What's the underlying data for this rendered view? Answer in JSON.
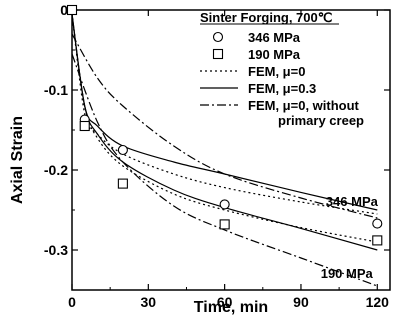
{
  "chart_data": {
    "type": "line",
    "xlabel": "Time, min",
    "ylabel": "Axial Strain",
    "xlim": [
      0,
      125
    ],
    "ylim": [
      -0.35,
      0
    ],
    "xticks": [
      0,
      30,
      60,
      90,
      120
    ],
    "yticks": [
      0,
      -0.1,
      -0.2,
      -0.3
    ],
    "ytick_labels": [
      "0",
      "-0.1",
      "-0.2",
      "-0.3"
    ],
    "grid": false,
    "legend_placement": "top-right",
    "legend_title": "Sinter Forging, 700℃",
    "annotations": [
      {
        "text": "346 MPa",
        "x": 110,
        "y": -0.245
      },
      {
        "text": "190 MPa",
        "x": 108,
        "y": -0.335
      }
    ],
    "series": [
      {
        "name": "346 MPa",
        "kind": "marker",
        "marker": "circle",
        "points": [
          [
            0,
            0
          ],
          [
            5,
            -0.137
          ],
          [
            20,
            -0.175
          ],
          [
            60,
            -0.243
          ],
          [
            120,
            -0.267
          ]
        ]
      },
      {
        "name": "190 MPa",
        "kind": "marker",
        "marker": "square",
        "points": [
          [
            0,
            0
          ],
          [
            5,
            -0.145
          ],
          [
            20,
            -0.217
          ],
          [
            60,
            -0.268
          ],
          [
            120,
            -0.288
          ]
        ]
      },
      {
        "name": "FEM, μ=0",
        "kind": "line",
        "style": "dotted",
        "group": "346 MPa",
        "points": [
          [
            0,
            -0.005
          ],
          [
            5,
            -0.13
          ],
          [
            10,
            -0.155
          ],
          [
            20,
            -0.18
          ],
          [
            40,
            -0.205
          ],
          [
            60,
            -0.222
          ],
          [
            90,
            -0.24
          ],
          [
            120,
            -0.255
          ]
        ]
      },
      {
        "name": "FEM, μ=0",
        "kind": "line",
        "style": "dotted",
        "group": "190 MPa",
        "points": [
          [
            0,
            -0.005
          ],
          [
            5,
            -0.12
          ],
          [
            10,
            -0.16
          ],
          [
            20,
            -0.195
          ],
          [
            40,
            -0.23
          ],
          [
            60,
            -0.25
          ],
          [
            90,
            -0.272
          ],
          [
            120,
            -0.29
          ]
        ]
      },
      {
        "name": "FEM, μ=0.3",
        "kind": "line",
        "style": "solid",
        "group": "346 MPa",
        "points": [
          [
            0,
            -0.005
          ],
          [
            5,
            -0.12
          ],
          [
            10,
            -0.145
          ],
          [
            20,
            -0.17
          ],
          [
            40,
            -0.19
          ],
          [
            60,
            -0.205
          ],
          [
            90,
            -0.228
          ],
          [
            120,
            -0.25
          ]
        ]
      },
      {
        "name": "FEM, μ=0.3",
        "kind": "line",
        "style": "solid",
        "group": "190 MPa",
        "points": [
          [
            0,
            -0.005
          ],
          [
            5,
            -0.12
          ],
          [
            10,
            -0.155
          ],
          [
            20,
            -0.19
          ],
          [
            40,
            -0.225
          ],
          [
            60,
            -0.247
          ],
          [
            90,
            -0.273
          ],
          [
            120,
            -0.3
          ]
        ]
      },
      {
        "name": "FEM, μ=0, without primary creep",
        "kind": "line",
        "style": "dashdot",
        "group": "346 MPa",
        "points": [
          [
            0,
            -0.03
          ],
          [
            10,
            -0.085
          ],
          [
            20,
            -0.12
          ],
          [
            40,
            -0.17
          ],
          [
            60,
            -0.205
          ],
          [
            90,
            -0.235
          ],
          [
            120,
            -0.26
          ]
        ]
      },
      {
        "name": "FEM, μ=0, without primary creep",
        "kind": "line",
        "style": "dashdot",
        "group": "190 MPa",
        "points": [
          [
            0,
            -0.055
          ],
          [
            10,
            -0.14
          ],
          [
            20,
            -0.19
          ],
          [
            40,
            -0.245
          ],
          [
            60,
            -0.275
          ],
          [
            90,
            -0.31
          ],
          [
            120,
            -0.345
          ]
        ]
      }
    ],
    "legend": [
      {
        "label": "346 MPa",
        "symbol": "circle"
      },
      {
        "label": "190 MPa",
        "symbol": "square"
      },
      {
        "label": "FEM, μ=0",
        "symbol": "dotted"
      },
      {
        "label": "FEM, μ=0.3",
        "symbol": "solid"
      },
      {
        "label": "FEM, μ=0, without",
        "label2": "primary creep",
        "symbol": "dashdot"
      }
    ]
  }
}
